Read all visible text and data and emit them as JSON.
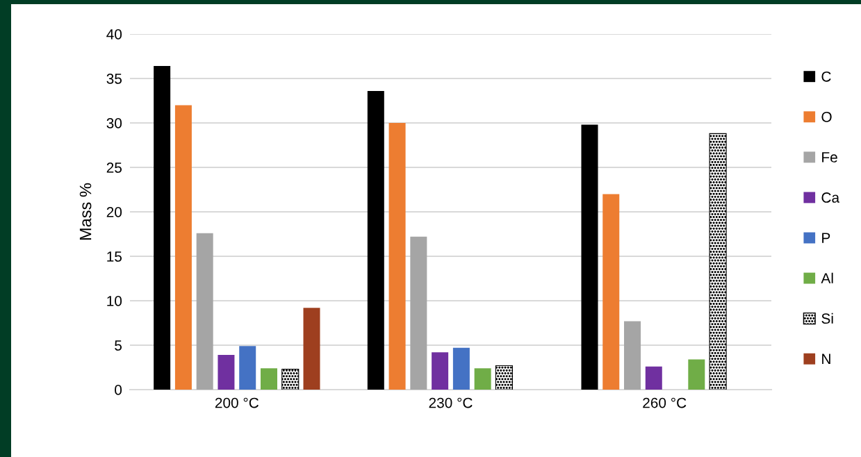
{
  "chart_data": {
    "type": "bar",
    "ylabel": "Mass %",
    "categories": [
      "200 °C",
      "230 °C",
      "260 °C"
    ],
    "series": [
      {
        "name": "C",
        "color": "#000000",
        "values": [
          36.4,
          33.6,
          29.8
        ]
      },
      {
        "name": "O",
        "color": "#ed7d31",
        "values": [
          32.0,
          30.0,
          22.0
        ]
      },
      {
        "name": "Fe",
        "color": "#a5a5a5",
        "values": [
          17.6,
          17.2,
          7.7
        ]
      },
      {
        "name": "Ca",
        "color": "#7030a0",
        "values": [
          3.9,
          4.2,
          2.6
        ]
      },
      {
        "name": "P",
        "color": "#4472c4",
        "values": [
          4.9,
          4.7,
          null
        ]
      },
      {
        "name": "Al",
        "color": "#70ad47",
        "values": [
          2.4,
          2.4,
          3.4
        ]
      },
      {
        "name": "Si",
        "color": "#000000",
        "values": [
          2.3,
          2.7,
          28.8
        ]
      },
      {
        "name": "N",
        "color": "#9e3f1f",
        "values": [
          9.2,
          null,
          null
        ]
      }
    ],
    "ylim": [
      0,
      40
    ],
    "yticks": [
      0,
      5,
      10,
      15,
      20,
      25,
      30,
      35,
      40
    ],
    "grid": "y",
    "legend": "right"
  }
}
